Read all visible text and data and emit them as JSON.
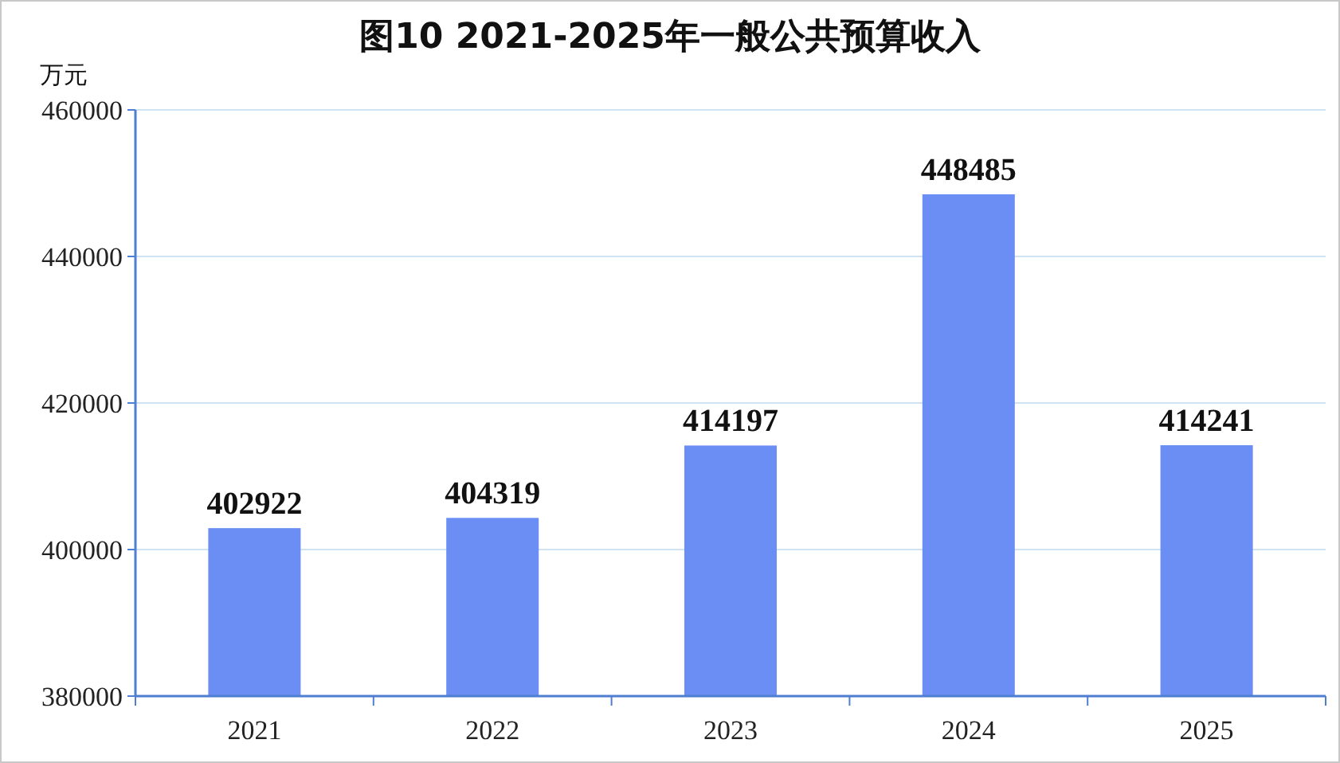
{
  "chart_data": {
    "type": "bar",
    "title": "图10 2021-2025年一般公共预算收入",
    "ylabel": "万元",
    "categories": [
      "2021",
      "2022",
      "2023",
      "2024",
      "2025"
    ],
    "values": [
      402922,
      404319,
      414197,
      448485,
      414241
    ],
    "color": "#6b8ef5",
    "ylim": [
      380000,
      460000
    ],
    "yticks": [
      380000,
      400000,
      420000,
      440000,
      460000
    ],
    "grid": "y",
    "data_labels": true
  }
}
